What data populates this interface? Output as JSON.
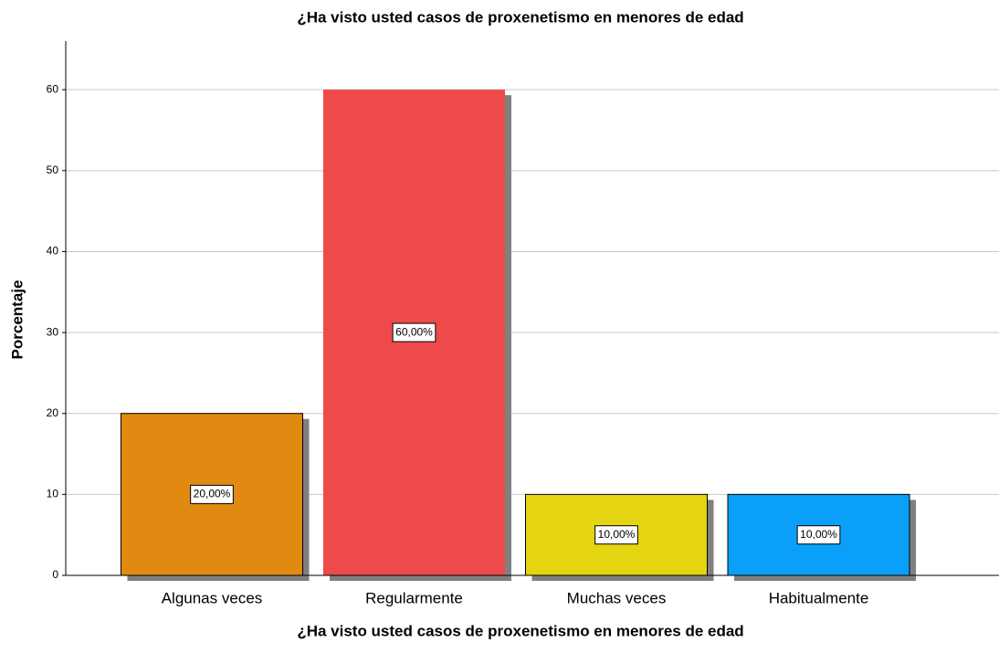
{
  "chart_data": {
    "type": "bar",
    "title": "¿Ha visto usted casos de proxenetismo en menores de edad",
    "x_label": "¿Ha visto usted casos de proxenetismo en menores de edad",
    "y_label": "Porcentaje",
    "categories": [
      "Algunas veces",
      "Regularmente",
      "Muchas veces",
      "Habitualmente"
    ],
    "values": [
      20,
      60,
      10,
      10
    ],
    "value_labels": [
      "20,00%",
      "60,00%",
      "10,00%",
      "10,00%"
    ],
    "colors": [
      "#e08a12",
      "#ee4a4b",
      "#e5d411",
      "#0aa0fa"
    ],
    "ylim": [
      0,
      66
    ],
    "yticks": [
      0,
      10,
      20,
      30,
      40,
      50,
      60
    ],
    "grid": true
  }
}
